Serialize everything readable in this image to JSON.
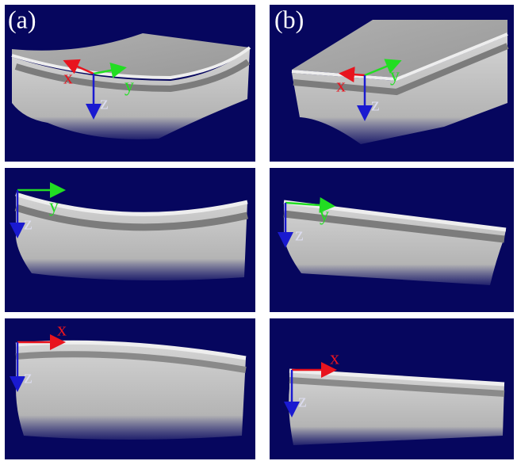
{
  "columns": [
    {
      "label": "(a)",
      "panels": [
        {
          "axes": [
            "x",
            "y",
            "z"
          ]
        },
        {
          "axes": [
            "y",
            "z"
          ]
        },
        {
          "axes": [
            "x",
            "z"
          ]
        }
      ]
    },
    {
      "label": "(b)",
      "panels": [
        {
          "axes": [
            "x",
            "y",
            "z"
          ]
        },
        {
          "axes": [
            "y",
            "z"
          ]
        },
        {
          "axes": [
            "x",
            "z"
          ]
        }
      ]
    }
  ]
}
